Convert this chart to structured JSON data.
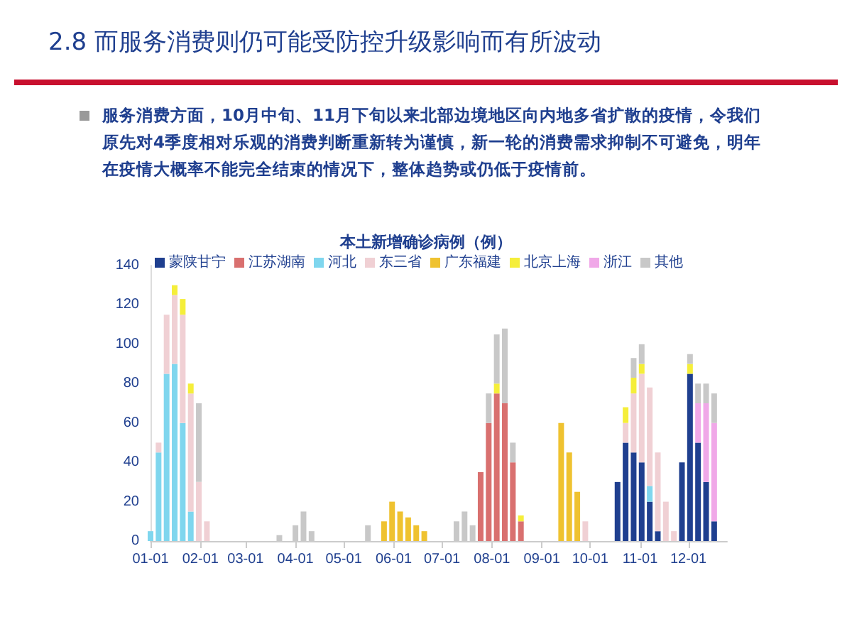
{
  "chart_data": {
    "type": "bar",
    "stacked": true,
    "title": "2.8 而服务消费则仍可能受防控升级影响而有所波动",
    "subtitle": "服务消费方面，10月中旬、11月下旬以来北部边境地区向内地多省扩散的疫情，令我们原先对4季度相对乐观的消费判断重新转为谨慎，新一轮的消费需求抑制不可避免，明年在疫情大概率不能完全结束的情况下，整体趋势或仍低于疫情前。",
    "annotations": [
      "本土新增确诊病例（例）"
    ],
    "x": [
      "--01-01",
      "--01-06",
      "--01-11",
      "--01-16",
      "--01-21",
      "--01-26",
      "--01-31",
      "--02-05",
      "--02-10",
      "--02-15",
      "--02-20",
      "--02-25",
      "--03-02",
      "--03-07",
      "--03-12",
      "--03-17",
      "--03-22",
      "--03-27",
      "--04-01",
      "--04-06",
      "--04-11",
      "--04-16",
      "--04-21",
      "--04-26",
      "--05-01",
      "--05-06",
      "--05-11",
      "--05-16",
      "--05-21",
      "--05-26",
      "--05-31",
      "--06-05",
      "--06-10",
      "--06-15",
      "--06-20",
      "--06-25",
      "--06-30",
      "--07-05",
      "--07-10",
      "--07-15",
      "--07-20",
      "--07-25",
      "--07-30",
      "--08-04",
      "--08-09",
      "--08-14",
      "--08-19",
      "--08-24",
      "--08-29",
      "--09-03",
      "--09-08",
      "--09-13",
      "--09-18",
      "--09-23",
      "--09-28",
      "--10-03",
      "--10-08",
      "--10-13",
      "--10-18",
      "--10-23",
      "--10-28",
      "--11-02",
      "--11-07",
      "--11-12",
      "--11-17",
      "--11-22",
      "--11-27",
      "--12-02",
      "--12-07",
      "--12-12",
      "--12-17"
    ],
    "xlim": [
      "--01-01",
      "--12-25"
    ],
    "xticks": [
      {
        "value": "--01-01",
        "label": "01-01"
      },
      {
        "value": "--02-01",
        "label": "02-01"
      },
      {
        "value": "--03-01",
        "label": "03-01"
      },
      {
        "value": "--04-01",
        "label": "04-01"
      },
      {
        "value": "--05-01",
        "label": "05-01"
      },
      {
        "value": "--06-01",
        "label": "06-01"
      },
      {
        "value": "--07-01",
        "label": "07-01"
      },
      {
        "value": "--08-01",
        "label": "08-01"
      },
      {
        "value": "--09-01",
        "label": "09-01"
      },
      {
        "value": "--10-01",
        "label": "10-01"
      },
      {
        "value": "--11-01",
        "label": "11-01"
      },
      {
        "value": "--12-01",
        "label": "12-01"
      }
    ],
    "ylim": [
      0,
      140
    ],
    "yticks": [
      0,
      20,
      40,
      60,
      80,
      100,
      120,
      140
    ],
    "grid": false,
    "legend": "top",
    "series": [
      {
        "name": "蒙陕甘宁",
        "color": "#1f3f8f",
        "values": [
          0,
          0,
          0,
          0,
          0,
          0,
          0,
          0,
          0,
          0,
          0,
          0,
          0,
          0,
          0,
          0,
          0,
          0,
          0,
          0,
          0,
          0,
          0,
          0,
          0,
          0,
          0,
          0,
          0,
          0,
          0,
          0,
          0,
          0,
          0,
          0,
          0,
          0,
          0,
          0,
          0,
          0,
          0,
          0,
          0,
          0,
          0,
          0,
          0,
          0,
          0,
          0,
          0,
          0,
          0,
          0,
          0,
          0,
          30,
          50,
          45,
          40,
          20,
          5,
          0,
          0,
          40,
          85,
          50,
          30,
          10
        ]
      },
      {
        "name": "江苏湖南",
        "color": "#d9706f",
        "values": [
          0,
          0,
          0,
          0,
          0,
          0,
          0,
          0,
          0,
          0,
          0,
          0,
          0,
          0,
          0,
          0,
          0,
          0,
          0,
          0,
          0,
          0,
          0,
          0,
          0,
          0,
          0,
          0,
          0,
          0,
          0,
          0,
          0,
          0,
          0,
          0,
          0,
          0,
          0,
          0,
          0,
          35,
          60,
          75,
          70,
          40,
          10,
          0,
          0,
          0,
          0,
          0,
          0,
          0,
          0,
          0,
          0,
          0,
          0,
          0,
          0,
          0,
          0,
          0,
          0,
          0,
          0,
          0,
          0,
          0,
          0
        ]
      },
      {
        "name": "河北",
        "color": "#7fd6ee",
        "values": [
          5,
          45,
          85,
          90,
          60,
          15,
          0,
          0,
          0,
          0,
          0,
          0,
          0,
          0,
          0,
          0,
          0,
          0,
          0,
          0,
          0,
          0,
          0,
          0,
          0,
          0,
          0,
          0,
          0,
          0,
          0,
          0,
          0,
          0,
          0,
          0,
          0,
          0,
          0,
          0,
          0,
          0,
          0,
          0,
          0,
          0,
          0,
          0,
          0,
          0,
          0,
          0,
          0,
          0,
          0,
          0,
          0,
          0,
          0,
          0,
          0,
          0,
          8,
          0,
          0,
          0,
          0,
          0,
          0,
          0,
          0
        ]
      },
      {
        "name": "东三省",
        "color": "#f0d0d4",
        "values": [
          0,
          5,
          30,
          35,
          55,
          60,
          30,
          10,
          0,
          0,
          0,
          0,
          0,
          0,
          0,
          0,
          0,
          0,
          0,
          0,
          0,
          0,
          0,
          0,
          0,
          0,
          0,
          0,
          0,
          0,
          0,
          0,
          0,
          0,
          0,
          0,
          0,
          0,
          0,
          0,
          0,
          0,
          0,
          0,
          0,
          0,
          0,
          0,
          0,
          0,
          0,
          0,
          0,
          0,
          10,
          0,
          0,
          0,
          0,
          10,
          30,
          45,
          50,
          40,
          20,
          5,
          0,
          0,
          0,
          0,
          0
        ]
      },
      {
        "name": "广东福建",
        "color": "#efc230",
        "values": [
          0,
          0,
          0,
          0,
          0,
          0,
          0,
          0,
          0,
          0,
          0,
          0,
          0,
          0,
          0,
          0,
          0,
          0,
          0,
          0,
          0,
          0,
          0,
          0,
          0,
          0,
          0,
          0,
          0,
          10,
          20,
          15,
          12,
          8,
          5,
          0,
          0,
          0,
          0,
          0,
          0,
          0,
          0,
          0,
          0,
          0,
          0,
          0,
          0,
          0,
          0,
          60,
          45,
          25,
          0,
          0,
          0,
          0,
          0,
          0,
          0,
          0,
          0,
          0,
          0,
          0,
          0,
          0,
          0,
          0,
          0
        ]
      },
      {
        "name": "北京上海",
        "color": "#f5ee3a",
        "values": [
          0,
          0,
          0,
          5,
          8,
          5,
          0,
          0,
          0,
          0,
          0,
          0,
          0,
          0,
          0,
          0,
          0,
          0,
          0,
          0,
          0,
          0,
          0,
          0,
          0,
          0,
          0,
          0,
          0,
          0,
          0,
          0,
          0,
          0,
          0,
          0,
          0,
          0,
          0,
          0,
          0,
          0,
          0,
          5,
          0,
          0,
          3,
          0,
          0,
          0,
          0,
          0,
          0,
          0,
          0,
          0,
          0,
          0,
          0,
          8,
          8,
          5,
          0,
          0,
          0,
          0,
          0,
          5,
          0,
          0,
          0
        ]
      },
      {
        "name": "浙江",
        "color": "#f0a8e8",
        "values": [
          0,
          0,
          0,
          0,
          0,
          0,
          0,
          0,
          0,
          0,
          0,
          0,
          0,
          0,
          0,
          0,
          0,
          0,
          0,
          0,
          0,
          0,
          0,
          0,
          0,
          0,
          0,
          0,
          0,
          0,
          0,
          0,
          0,
          0,
          0,
          0,
          0,
          0,
          0,
          0,
          0,
          0,
          0,
          0,
          0,
          0,
          0,
          0,
          0,
          0,
          0,
          0,
          0,
          0,
          0,
          0,
          0,
          0,
          0,
          0,
          0,
          0,
          0,
          0,
          0,
          0,
          0,
          0,
          20,
          40,
          50
        ]
      },
      {
        "name": "其他",
        "color": "#c8c8c8",
        "values": [
          0,
          0,
          0,
          0,
          0,
          0,
          40,
          0,
          0,
          0,
          0,
          0,
          0,
          0,
          0,
          0,
          3,
          0,
          8,
          15,
          5,
          0,
          0,
          0,
          0,
          0,
          0,
          8,
          0,
          0,
          0,
          0,
          0,
          0,
          0,
          0,
          0,
          0,
          10,
          15,
          8,
          0,
          15,
          25,
          38,
          10,
          0,
          0,
          0,
          0,
          0,
          0,
          0,
          0,
          0,
          0,
          0,
          0,
          0,
          0,
          10,
          10,
          0,
          0,
          0,
          0,
          0,
          5,
          10,
          10,
          15
        ]
      }
    ]
  }
}
